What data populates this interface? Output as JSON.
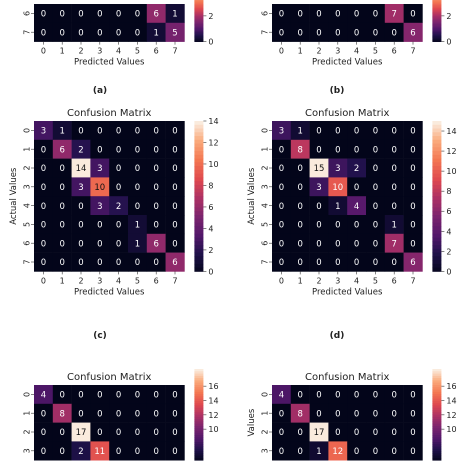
{
  "captions": [
    "(a)",
    "(b)",
    "(c)",
    "(d)"
  ],
  "chart_data": [
    {
      "id": "a",
      "type": "heatmap",
      "title": "",
      "xlabel": "Predicted Values",
      "ylabel": "",
      "x_ticks": [
        "0",
        "1",
        "2",
        "3",
        "4",
        "5",
        "6",
        "7"
      ],
      "y_ticks": [
        "6",
        "7"
      ],
      "matrix": [
        [
          0,
          0,
          0,
          0,
          0,
          0,
          6,
          1
        ],
        [
          0,
          0,
          0,
          0,
          0,
          0,
          1,
          5
        ]
      ],
      "colorbar": {
        "min": 0,
        "max": 14,
        "ticks": [
          "2",
          "0"
        ],
        "tick_values": [
          2,
          0
        ]
      }
    },
    {
      "id": "b",
      "type": "heatmap",
      "title": "",
      "xlabel": "Predicted Values",
      "ylabel": "",
      "x_ticks": [
        "0",
        "1",
        "2",
        "3",
        "4",
        "5",
        "6",
        "7"
      ],
      "y_ticks": [
        "6",
        "7"
      ],
      "matrix": [
        [
          0,
          0,
          0,
          0,
          0,
          0,
          7,
          0
        ],
        [
          0,
          0,
          0,
          0,
          0,
          0,
          0,
          6
        ]
      ],
      "colorbar": {
        "min": 0,
        "max": 15,
        "ticks": [
          "2",
          "0"
        ],
        "tick_values": [
          2,
          0
        ]
      }
    },
    {
      "id": "c",
      "type": "heatmap",
      "title": "Confusion Matrix",
      "xlabel": "Predicted Values",
      "ylabel": "Actual Values",
      "x_ticks": [
        "0",
        "1",
        "2",
        "3",
        "4",
        "5",
        "6",
        "7"
      ],
      "y_ticks": [
        "0",
        "1",
        "2",
        "3",
        "4",
        "5",
        "6",
        "7"
      ],
      "matrix": [
        [
          3,
          1,
          0,
          0,
          0,
          0,
          0,
          0
        ],
        [
          0,
          6,
          2,
          0,
          0,
          0,
          0,
          0
        ],
        [
          0,
          0,
          14,
          3,
          0,
          0,
          0,
          0
        ],
        [
          0,
          0,
          3,
          10,
          0,
          0,
          0,
          0
        ],
        [
          0,
          0,
          0,
          3,
          2,
          0,
          0,
          0
        ],
        [
          0,
          0,
          0,
          0,
          0,
          1,
          0,
          0
        ],
        [
          0,
          0,
          0,
          0,
          0,
          1,
          6,
          0
        ],
        [
          0,
          0,
          0,
          0,
          0,
          0,
          0,
          6
        ]
      ],
      "colorbar": {
        "min": 0,
        "max": 14,
        "ticks": [
          "14",
          "12",
          "10",
          "8",
          "6",
          "4",
          "2",
          "0"
        ],
        "tick_values": [
          14,
          12,
          10,
          8,
          6,
          4,
          2,
          0
        ]
      }
    },
    {
      "id": "d",
      "type": "heatmap",
      "title": "Confusion Matrix",
      "xlabel": "Predicted Values",
      "ylabel": "Actual Values",
      "x_ticks": [
        "0",
        "1",
        "2",
        "3",
        "4",
        "5",
        "6",
        "7"
      ],
      "y_ticks": [
        "0",
        "1",
        "2",
        "3",
        "4",
        "5",
        "6",
        "7"
      ],
      "matrix": [
        [
          3,
          1,
          0,
          0,
          0,
          0,
          0,
          0
        ],
        [
          0,
          8,
          0,
          0,
          0,
          0,
          0,
          0
        ],
        [
          0,
          0,
          15,
          3,
          2,
          0,
          0,
          0
        ],
        [
          0,
          0,
          3,
          10,
          0,
          0,
          0,
          0
        ],
        [
          0,
          0,
          0,
          1,
          4,
          0,
          0,
          0
        ],
        [
          0,
          0,
          0,
          0,
          0,
          0,
          1,
          0
        ],
        [
          0,
          0,
          0,
          0,
          0,
          0,
          7,
          0
        ],
        [
          0,
          0,
          0,
          0,
          0,
          0,
          0,
          6
        ]
      ],
      "colorbar": {
        "min": 0,
        "max": 15,
        "ticks": [
          "14",
          "12",
          "10",
          "8",
          "6",
          "4",
          "2",
          "0"
        ],
        "tick_values": [
          14,
          12,
          10,
          8,
          6,
          4,
          2,
          0
        ]
      }
    },
    {
      "id": "e",
      "type": "heatmap",
      "title": "Confusion Matrix",
      "xlabel": "",
      "ylabel": "",
      "x_ticks": [],
      "y_ticks": [
        "0",
        "1",
        "2",
        "3"
      ],
      "matrix": [
        [
          4,
          0,
          0,
          0,
          0,
          0,
          0,
          0
        ],
        [
          0,
          8,
          0,
          0,
          0,
          0,
          0,
          0
        ],
        [
          0,
          0,
          17,
          0,
          0,
          0,
          0,
          0
        ],
        [
          0,
          0,
          2,
          11,
          0,
          0,
          0,
          0
        ]
      ],
      "colorbar": {
        "min": 0,
        "max": 17,
        "ticks": [
          "16",
          "14",
          "12",
          "10"
        ],
        "tick_values": [
          16,
          14,
          12,
          10
        ]
      }
    },
    {
      "id": "f",
      "type": "heatmap",
      "title": "Confusion Matrix",
      "xlabel": "",
      "ylabel": "Values",
      "x_ticks": [],
      "y_ticks": [
        "0",
        "1",
        "2",
        "3"
      ],
      "matrix": [
        [
          4,
          0,
          0,
          0,
          0,
          0,
          0,
          0
        ],
        [
          0,
          8,
          0,
          0,
          0,
          0,
          0,
          0
        ],
        [
          0,
          0,
          17,
          0,
          0,
          0,
          0,
          0
        ],
        [
          0,
          0,
          1,
          12,
          0,
          0,
          0,
          0
        ]
      ],
      "colorbar": {
        "min": 0,
        "max": 17,
        "ticks": [
          "16",
          "14",
          "12",
          "10"
        ],
        "tick_values": [
          16,
          14,
          12,
          10
        ]
      }
    }
  ]
}
